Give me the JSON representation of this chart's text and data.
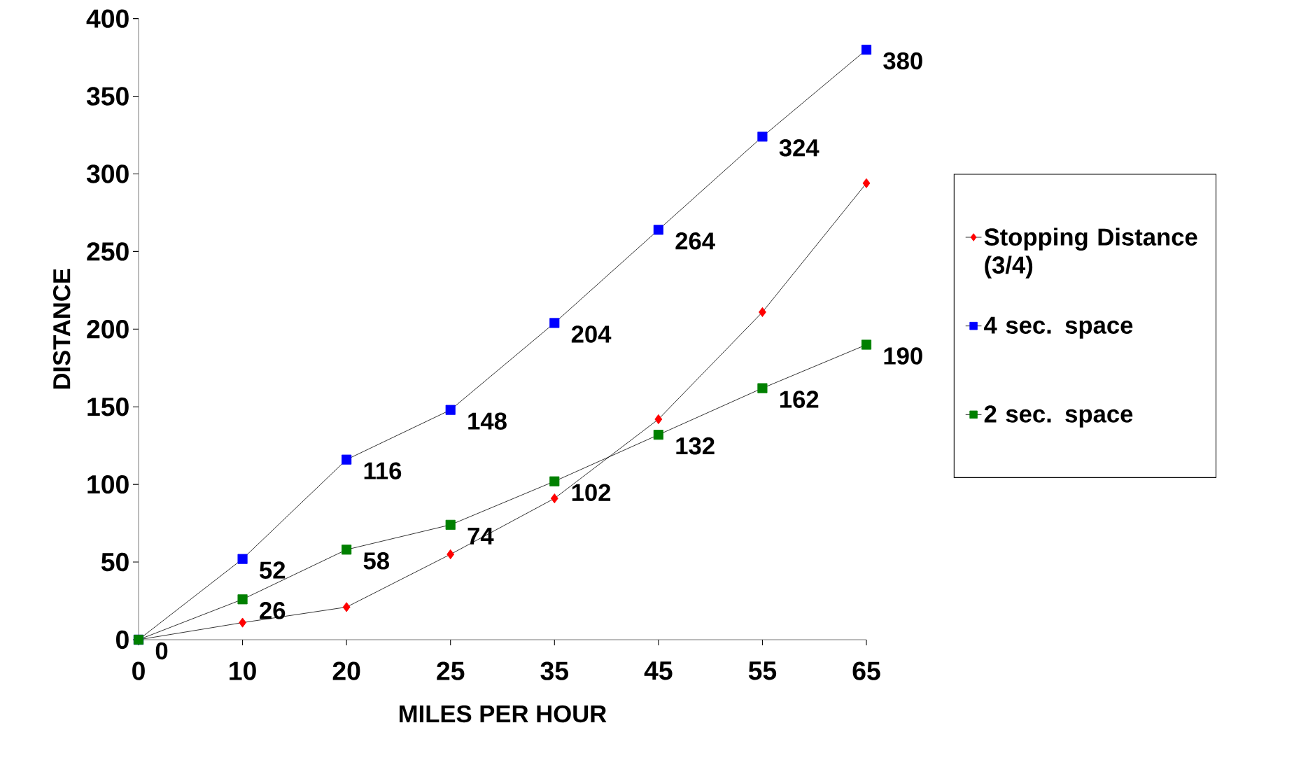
{
  "chart_data": {
    "type": "line",
    "xlabel": "MILES PER HOUR",
    "ylabel": "DISTANCE",
    "categories": [
      "0",
      "10",
      "20",
      "25",
      "35",
      "45",
      "55",
      "65"
    ],
    "ylim": [
      0,
      400
    ],
    "yticks": [
      0,
      50,
      100,
      150,
      200,
      250,
      300,
      350,
      400
    ],
    "legend": "right",
    "grid": false,
    "line_style": "solid",
    "series": [
      {
        "name": "Stopping Distance (3/4)",
        "color": "#ff0000",
        "marker": "diamond",
        "values": [
          0,
          11,
          21,
          55,
          91,
          142,
          211,
          294
        ]
      },
      {
        "name": "4 sec. space",
        "color": "#0000ff",
        "marker": "square",
        "values": [
          0,
          52,
          116,
          148,
          204,
          264,
          324,
          380
        ],
        "value_labels": [
          "0",
          "52",
          "116",
          "148",
          "204",
          "264",
          "324",
          "380"
        ]
      },
      {
        "name": "2 sec. space",
        "color": "#008000",
        "marker": "square",
        "values": [
          0,
          26,
          58,
          74,
          102,
          132,
          162,
          190
        ],
        "value_labels": [
          null,
          "26",
          "58",
          "74",
          "102",
          "132",
          "162",
          "190"
        ]
      }
    ]
  }
}
